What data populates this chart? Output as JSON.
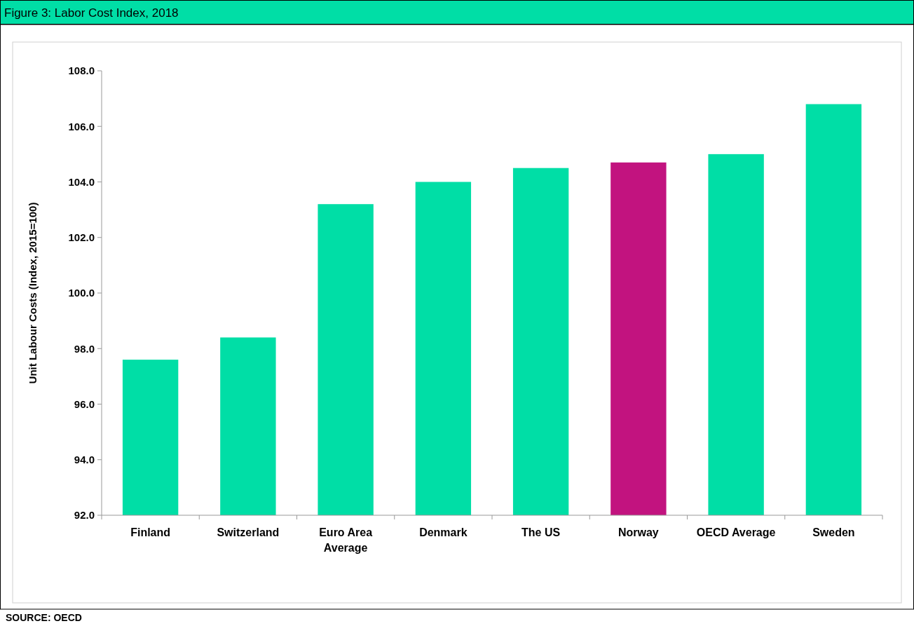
{
  "chart_data": {
    "type": "bar",
    "title": "Figure 3: Labor Cost Index, 2018",
    "ylabel": "Unit Labour Costs (Index, 2015=100)",
    "categories": [
      "Finland",
      "Switzerland",
      "Euro Area Average",
      "Denmark",
      "The US",
      "Norway",
      "OECD Average",
      "Sweden"
    ],
    "values": [
      97.6,
      98.4,
      103.2,
      104.0,
      104.5,
      104.7,
      105.0,
      106.8
    ],
    "colors": [
      "#00dea6",
      "#00dea6",
      "#00dea6",
      "#00dea6",
      "#00dea6",
      "#c2137f",
      "#00dea6",
      "#00dea6"
    ],
    "ylim": [
      92,
      108
    ],
    "yticks": [
      {
        "value": 92,
        "label": "92.0"
      },
      {
        "value": 94,
        "label": "94.0"
      },
      {
        "value": 96,
        "label": "96.0"
      },
      {
        "value": 98,
        "label": "98.0"
      },
      {
        "value": 100,
        "label": "100.0"
      },
      {
        "value": 102,
        "label": "102.0"
      },
      {
        "value": 104,
        "label": "104.0"
      },
      {
        "value": 106,
        "label": "106.0"
      },
      {
        "value": 108,
        "label": "108.0"
      }
    ],
    "annotations": [
      "SOURCE: OECD"
    ]
  }
}
